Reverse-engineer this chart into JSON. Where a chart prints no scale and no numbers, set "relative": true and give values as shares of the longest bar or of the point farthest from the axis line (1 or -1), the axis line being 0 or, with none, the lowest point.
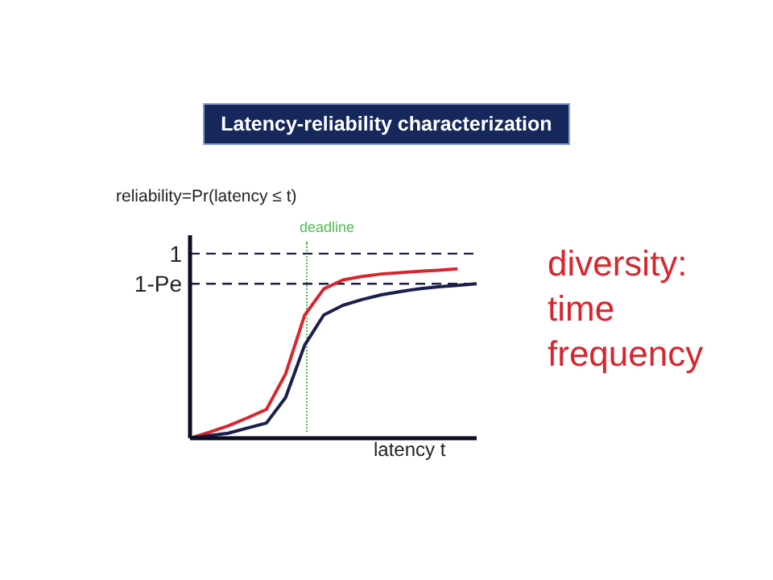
{
  "chart_data": {
    "type": "line",
    "title": "Latency-reliability characterization",
    "xlabel": "latency t",
    "ylabel": "reliability=Pr(latency ≤ t)",
    "relative": true,
    "marker": "none",
    "line_style": "solid",
    "grid": false,
    "legend": false,
    "categories": [
      null,
      null,
      null,
      null,
      null,
      null,
      null,
      null,
      null,
      null,
      null,
      null,
      null,
      null,
      null,
      null
    ],
    "series": [
      {
        "color": "#d7262e",
        "values": [
          0,
          0.035,
          0.073,
          0.12,
          0.17,
          0.38,
          0.727,
          0.882,
          0.935,
          0.955,
          0.97,
          0.978,
          0.986,
          0.992,
          1,
          null
        ]
      },
      {
        "color": "#1a1f4b",
        "values": [
          0,
          0.015,
          0.03,
          0.06,
          0.09,
          0.24,
          0.55,
          0.728,
          0.785,
          0.819,
          0.847,
          0.866,
          0.883,
          0.894,
          0.903,
          0.912
        ]
      }
    ],
    "ref_lines": [
      {
        "axis": "y",
        "value": 1.09,
        "label": "1",
        "color": "#1a1f4b",
        "line_style": "dashed"
      },
      {
        "axis": "y",
        "value": 0.912,
        "label": "1-Pe",
        "color": "#1a1f4b",
        "line_style": "dashed"
      }
    ],
    "annotations": [
      "deadline",
      "diversity:\ntime\nfrequency"
    ]
  }
}
